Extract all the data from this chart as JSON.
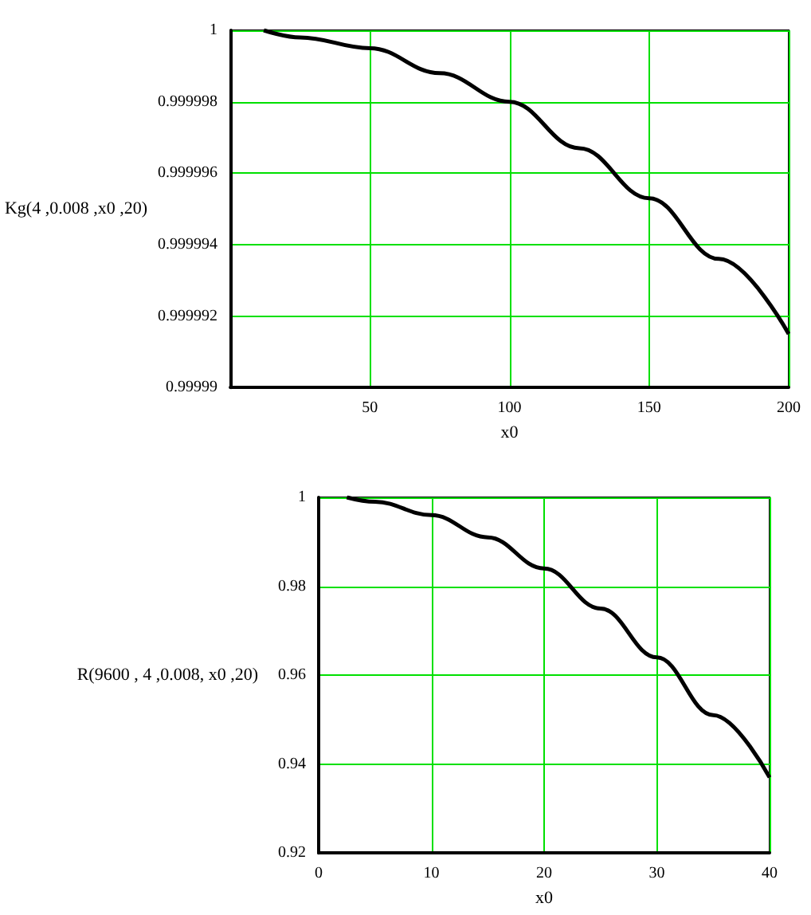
{
  "chart_data": [
    {
      "type": "line",
      "xlabel": "x0",
      "ylabel": "Kg(4 ,0.008 ,x0 ,20)",
      "x": [
        12,
        25,
        50,
        75,
        100,
        125,
        150,
        175,
        200
      ],
      "series": [
        {
          "color": "#000000",
          "values": [
            1.0,
            0.9999998,
            0.9999995,
            0.9999988,
            0.999998,
            0.9999967,
            0.9999953,
            0.9999936,
            0.9999915
          ]
        }
      ],
      "xlim": [
        0,
        200
      ],
      "xticks": [
        50,
        100,
        150,
        200
      ],
      "ylim": [
        0.99999,
        1
      ],
      "yticks": [
        0.99999,
        0.999992,
        0.999994,
        0.999996,
        0.999998,
        1
      ],
      "grid": true,
      "marker": "none"
    },
    {
      "type": "line",
      "xlabel": "x0",
      "ylabel": "R(9600 , 4 ,0.008, x0 ,20)",
      "x": [
        2.5,
        5,
        10,
        15,
        20,
        25,
        30,
        35,
        40
      ],
      "series": [
        {
          "color": "#000000",
          "values": [
            1.0,
            0.999,
            0.996,
            0.991,
            0.984,
            0.975,
            0.964,
            0.951,
            0.937
          ]
        }
      ],
      "xlim": [
        0,
        40
      ],
      "xticks": [
        0,
        10,
        20,
        30,
        40
      ],
      "ylim": [
        0.92,
        1
      ],
      "yticks": [
        0.92,
        0.94,
        0.96,
        0.98,
        1
      ],
      "grid": true,
      "marker": "none"
    }
  ]
}
